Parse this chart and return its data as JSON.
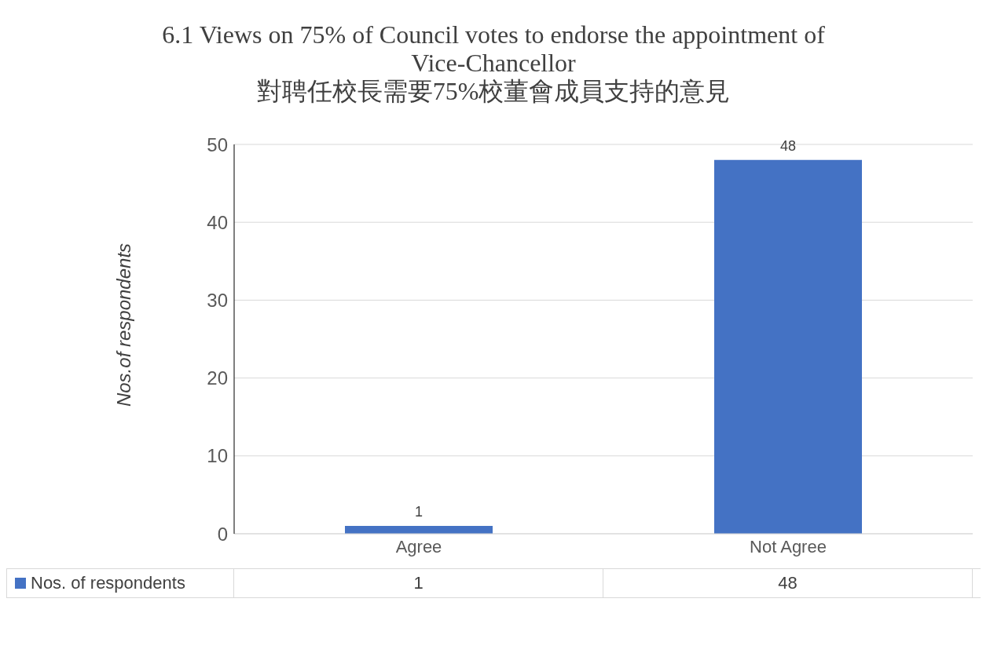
{
  "chart_data": {
    "type": "bar",
    "title": "6.1 Views on 75% of Council votes to endorse the appointment of Vice-Chancellor",
    "subtitle": "對聘任校長需要75%校董會成員支持的意見",
    "ylabel": "Nos.of respondents",
    "categories": [
      "Agree",
      "Not Agree"
    ],
    "series": [
      {
        "name": "Nos. of respondents",
        "color": "#4472c4",
        "values": [
          1,
          48
        ],
        "value_labels": [
          "1",
          "48"
        ]
      }
    ],
    "ylim": [
      0,
      50
    ],
    "yticks": [
      0,
      10,
      20,
      30,
      40,
      50
    ],
    "grid": "y",
    "legend": "bottom"
  }
}
